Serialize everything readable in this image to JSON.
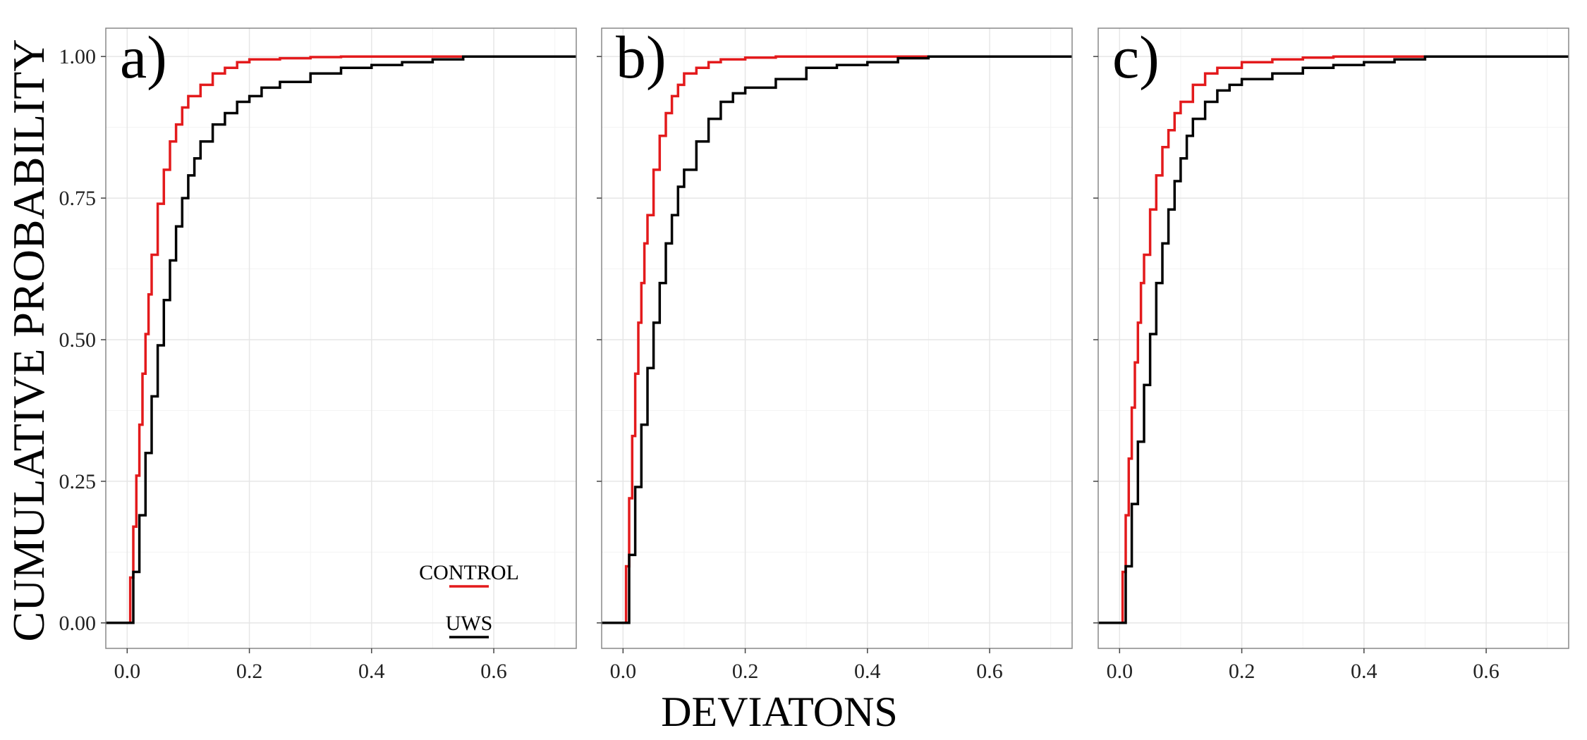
{
  "chart_data": {
    "type": "line",
    "ylabel": "CUMULATIVE PROBABILITY",
    "xlabel": "DEVIATONS",
    "xlim": [
      -0.035,
      0.735
    ],
    "ylim": [
      -0.045,
      1.05
    ],
    "x_ticks": [
      "0.0",
      "0.2",
      "0.4",
      "0.6"
    ],
    "x_tick_values": [
      0,
      0.2,
      0.4,
      0.6
    ],
    "y_ticks": [
      "0.00",
      "0.25",
      "0.50",
      "0.75",
      "1.00"
    ],
    "y_tick_values": [
      0,
      0.25,
      0.5,
      0.75,
      1.0
    ],
    "grid": true,
    "legend": {
      "placement": "bottom-right of panel a",
      "entries": [
        {
          "label": "CONTROL",
          "color": "#e31a1c"
        },
        {
          "label": "UWS",
          "color": "#000000"
        }
      ]
    },
    "panels": [
      {
        "label": "a)",
        "series": [
          {
            "name": "CONTROL",
            "color": "#e31a1c",
            "points": [
              [
                -0.035,
                0
              ],
              [
                0,
                0
              ],
              [
                0.005,
                0.08
              ],
              [
                0.01,
                0.17
              ],
              [
                0.015,
                0.26
              ],
              [
                0.02,
                0.35
              ],
              [
                0.025,
                0.44
              ],
              [
                0.03,
                0.51
              ],
              [
                0.035,
                0.58
              ],
              [
                0.04,
                0.65
              ],
              [
                0.05,
                0.74
              ],
              [
                0.06,
                0.8
              ],
              [
                0.07,
                0.85
              ],
              [
                0.08,
                0.88
              ],
              [
                0.09,
                0.91
              ],
              [
                0.1,
                0.93
              ],
              [
                0.12,
                0.95
              ],
              [
                0.14,
                0.97
              ],
              [
                0.16,
                0.98
              ],
              [
                0.18,
                0.99
              ],
              [
                0.2,
                0.995
              ],
              [
                0.25,
                0.997
              ],
              [
                0.3,
                0.999
              ],
              [
                0.35,
                1.0
              ],
              [
                0.735,
                1.0
              ]
            ]
          },
          {
            "name": "UWS",
            "color": "#000000",
            "points": [
              [
                -0.035,
                0
              ],
              [
                0,
                0
              ],
              [
                0.01,
                0.09
              ],
              [
                0.02,
                0.19
              ],
              [
                0.03,
                0.3
              ],
              [
                0.04,
                0.4
              ],
              [
                0.05,
                0.49
              ],
              [
                0.06,
                0.57
              ],
              [
                0.07,
                0.64
              ],
              [
                0.08,
                0.7
              ],
              [
                0.09,
                0.75
              ],
              [
                0.1,
                0.79
              ],
              [
                0.11,
                0.82
              ],
              [
                0.12,
                0.85
              ],
              [
                0.14,
                0.88
              ],
              [
                0.16,
                0.9
              ],
              [
                0.18,
                0.92
              ],
              [
                0.2,
                0.93
              ],
              [
                0.22,
                0.945
              ],
              [
                0.25,
                0.955
              ],
              [
                0.3,
                0.97
              ],
              [
                0.35,
                0.98
              ],
              [
                0.4,
                0.985
              ],
              [
                0.45,
                0.99
              ],
              [
                0.5,
                0.995
              ],
              [
                0.55,
                1.0
              ],
              [
                0.735,
                1.0
              ]
            ]
          }
        ]
      },
      {
        "label": "b)",
        "series": [
          {
            "name": "CONTROL",
            "color": "#e31a1c",
            "points": [
              [
                -0.035,
                0
              ],
              [
                0,
                0
              ],
              [
                0.005,
                0.1
              ],
              [
                0.01,
                0.22
              ],
              [
                0.015,
                0.33
              ],
              [
                0.02,
                0.44
              ],
              [
                0.025,
                0.53
              ],
              [
                0.03,
                0.6
              ],
              [
                0.035,
                0.67
              ],
              [
                0.04,
                0.72
              ],
              [
                0.05,
                0.8
              ],
              [
                0.06,
                0.86
              ],
              [
                0.07,
                0.9
              ],
              [
                0.08,
                0.93
              ],
              [
                0.09,
                0.95
              ],
              [
                0.1,
                0.97
              ],
              [
                0.12,
                0.98
              ],
              [
                0.14,
                0.99
              ],
              [
                0.16,
                0.995
              ],
              [
                0.2,
                0.998
              ],
              [
                0.25,
                1.0
              ],
              [
                0.735,
                1.0
              ]
            ]
          },
          {
            "name": "UWS",
            "color": "#000000",
            "points": [
              [
                -0.035,
                0
              ],
              [
                0,
                0
              ],
              [
                0.01,
                0.12
              ],
              [
                0.02,
                0.24
              ],
              [
                0.03,
                0.35
              ],
              [
                0.04,
                0.45
              ],
              [
                0.05,
                0.53
              ],
              [
                0.06,
                0.6
              ],
              [
                0.07,
                0.67
              ],
              [
                0.08,
                0.72
              ],
              [
                0.09,
                0.77
              ],
              [
                0.1,
                0.8
              ],
              [
                0.12,
                0.85
              ],
              [
                0.14,
                0.89
              ],
              [
                0.16,
                0.92
              ],
              [
                0.18,
                0.935
              ],
              [
                0.2,
                0.945
              ],
              [
                0.25,
                0.96
              ],
              [
                0.3,
                0.98
              ],
              [
                0.35,
                0.985
              ],
              [
                0.4,
                0.99
              ],
              [
                0.45,
                0.997
              ],
              [
                0.5,
                1.0
              ],
              [
                0.735,
                1.0
              ]
            ]
          }
        ]
      },
      {
        "label": "c)",
        "series": [
          {
            "name": "CONTROL",
            "color": "#e31a1c",
            "points": [
              [
                -0.035,
                0
              ],
              [
                0,
                0
              ],
              [
                0.005,
                0.09
              ],
              [
                0.01,
                0.19
              ],
              [
                0.015,
                0.29
              ],
              [
                0.02,
                0.38
              ],
              [
                0.025,
                0.46
              ],
              [
                0.03,
                0.53
              ],
              [
                0.035,
                0.6
              ],
              [
                0.04,
                0.65
              ],
              [
                0.05,
                0.73
              ],
              [
                0.06,
                0.79
              ],
              [
                0.07,
                0.84
              ],
              [
                0.08,
                0.87
              ],
              [
                0.09,
                0.9
              ],
              [
                0.1,
                0.92
              ],
              [
                0.12,
                0.95
              ],
              [
                0.14,
                0.97
              ],
              [
                0.16,
                0.98
              ],
              [
                0.2,
                0.99
              ],
              [
                0.25,
                0.995
              ],
              [
                0.3,
                0.998
              ],
              [
                0.35,
                1.0
              ],
              [
                0.735,
                1.0
              ]
            ]
          },
          {
            "name": "UWS",
            "color": "#000000",
            "points": [
              [
                -0.035,
                0
              ],
              [
                0,
                0
              ],
              [
                0.01,
                0.1
              ],
              [
                0.02,
                0.21
              ],
              [
                0.03,
                0.32
              ],
              [
                0.04,
                0.42
              ],
              [
                0.05,
                0.51
              ],
              [
                0.06,
                0.6
              ],
              [
                0.07,
                0.67
              ],
              [
                0.08,
                0.73
              ],
              [
                0.09,
                0.78
              ],
              [
                0.1,
                0.82
              ],
              [
                0.11,
                0.86
              ],
              [
                0.12,
                0.89
              ],
              [
                0.14,
                0.92
              ],
              [
                0.16,
                0.94
              ],
              [
                0.18,
                0.95
              ],
              [
                0.2,
                0.96
              ],
              [
                0.25,
                0.97
              ],
              [
                0.3,
                0.98
              ],
              [
                0.35,
                0.985
              ],
              [
                0.4,
                0.99
              ],
              [
                0.45,
                0.995
              ],
              [
                0.5,
                1.0
              ],
              [
                0.735,
                1.0
              ]
            ]
          }
        ]
      }
    ]
  }
}
